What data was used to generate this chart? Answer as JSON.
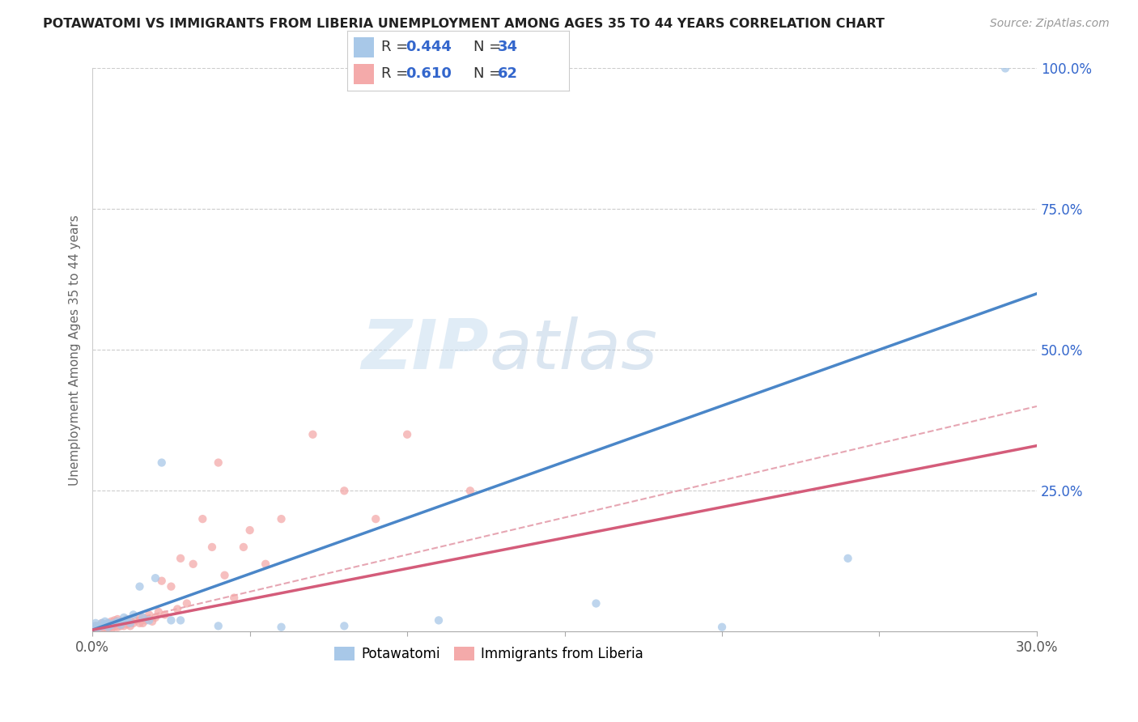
{
  "title": "POTAWATOMI VS IMMIGRANTS FROM LIBERIA UNEMPLOYMENT AMONG AGES 35 TO 44 YEARS CORRELATION CHART",
  "source": "Source: ZipAtlas.com",
  "ylabel": "Unemployment Among Ages 35 to 44 years",
  "xlim": [
    0.0,
    0.3
  ],
  "ylim": [
    0.0,
    1.0
  ],
  "xticks": [
    0.0,
    0.05,
    0.1,
    0.15,
    0.2,
    0.25,
    0.3
  ],
  "xticklabels": [
    "0.0%",
    "",
    "",
    "",
    "",
    "",
    "30.0%"
  ],
  "yticks_right": [
    0.25,
    0.5,
    0.75,
    1.0
  ],
  "yticklabels_right": [
    "25.0%",
    "50.0%",
    "75.0%",
    "100.0%"
  ],
  "grid_yticks": [
    0.25,
    0.5,
    0.75,
    1.0
  ],
  "blue_color": "#a8c8e8",
  "pink_color": "#f4aaaa",
  "blue_line_color": "#4a86c8",
  "pink_line_color": "#d45c7a",
  "dashed_line_color": "#e090a0",
  "legend_r_color": "#3366cc",
  "watermark_zip": "ZIP",
  "watermark_atlas": "atlas",
  "legend_label_blue": "Potawatomi",
  "legend_label_pink": "Immigrants from Liberia",
  "blue_line_x0": 0.0,
  "blue_line_y0": 0.003,
  "blue_line_x1": 0.3,
  "blue_line_y1": 0.6,
  "pink_line_x0": 0.0,
  "pink_line_y0": 0.003,
  "pink_line_x1": 0.3,
  "pink_line_y1": 0.33,
  "dash_line_x0": 0.0,
  "dash_line_y0": 0.005,
  "dash_line_x1": 0.3,
  "dash_line_y1": 0.4,
  "blue_scatter_x": [
    0.001,
    0.001,
    0.001,
    0.002,
    0.003,
    0.003,
    0.004,
    0.004,
    0.005,
    0.005,
    0.006,
    0.007,
    0.008,
    0.009,
    0.01,
    0.01,
    0.011,
    0.012,
    0.013,
    0.015,
    0.016,
    0.018,
    0.02,
    0.022,
    0.025,
    0.028,
    0.04,
    0.06,
    0.08,
    0.11,
    0.16,
    0.2,
    0.24,
    0.29
  ],
  "blue_scatter_y": [
    0.005,
    0.01,
    0.015,
    0.008,
    0.01,
    0.015,
    0.012,
    0.018,
    0.008,
    0.015,
    0.012,
    0.015,
    0.018,
    0.012,
    0.018,
    0.025,
    0.022,
    0.015,
    0.03,
    0.08,
    0.025,
    0.02,
    0.095,
    0.3,
    0.02,
    0.02,
    0.01,
    0.008,
    0.01,
    0.02,
    0.05,
    0.008,
    0.13,
    1.0
  ],
  "pink_scatter_x": [
    0.001,
    0.001,
    0.001,
    0.002,
    0.002,
    0.003,
    0.003,
    0.003,
    0.004,
    0.004,
    0.005,
    0.005,
    0.005,
    0.006,
    0.006,
    0.006,
    0.007,
    0.007,
    0.007,
    0.008,
    0.008,
    0.008,
    0.009,
    0.009,
    0.01,
    0.01,
    0.011,
    0.011,
    0.012,
    0.012,
    0.013,
    0.014,
    0.015,
    0.015,
    0.016,
    0.016,
    0.017,
    0.018,
    0.019,
    0.02,
    0.021,
    0.022,
    0.023,
    0.025,
    0.027,
    0.028,
    0.03,
    0.032,
    0.035,
    0.038,
    0.04,
    0.042,
    0.045,
    0.048,
    0.05,
    0.055,
    0.06,
    0.07,
    0.08,
    0.09,
    0.1,
    0.12
  ],
  "pink_scatter_y": [
    0.003,
    0.006,
    0.01,
    0.005,
    0.01,
    0.005,
    0.01,
    0.015,
    0.005,
    0.01,
    0.003,
    0.008,
    0.015,
    0.005,
    0.01,
    0.018,
    0.008,
    0.013,
    0.02,
    0.008,
    0.015,
    0.022,
    0.01,
    0.018,
    0.01,
    0.018,
    0.013,
    0.022,
    0.01,
    0.02,
    0.015,
    0.02,
    0.015,
    0.025,
    0.015,
    0.025,
    0.02,
    0.03,
    0.018,
    0.025,
    0.035,
    0.09,
    0.03,
    0.08,
    0.04,
    0.13,
    0.05,
    0.12,
    0.2,
    0.15,
    0.3,
    0.1,
    0.06,
    0.15,
    0.18,
    0.12,
    0.2,
    0.35,
    0.25,
    0.2,
    0.35,
    0.25
  ]
}
